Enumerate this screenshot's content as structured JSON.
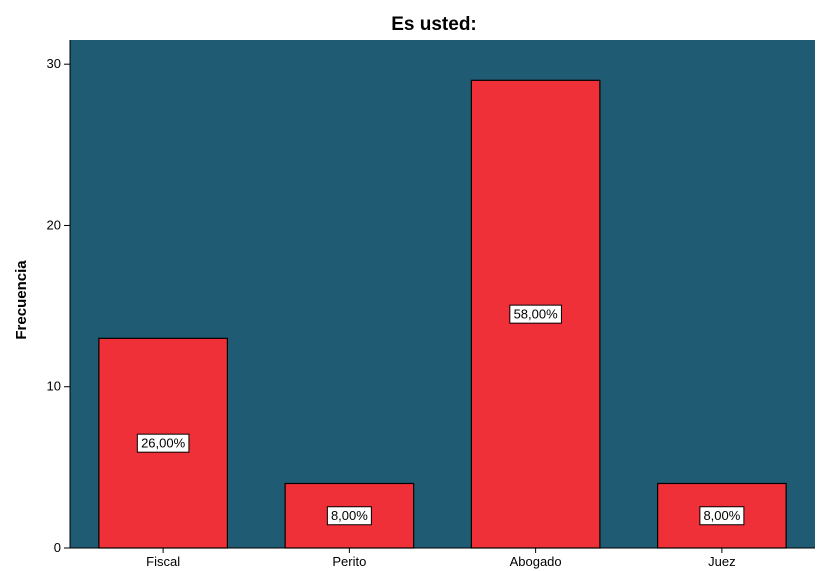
{
  "chart_data": {
    "type": "bar",
    "title": "Es usted:",
    "xlabel": "",
    "ylabel": "Frecuencia",
    "categories": [
      "Fiscal",
      "Perito",
      "Abogado",
      "Juez"
    ],
    "values": [
      13,
      4,
      29,
      4
    ],
    "data_labels": [
      "26,00%",
      "8,00%",
      "58,00%",
      "8,00%"
    ],
    "ylim": [
      0,
      31.5
    ],
    "yticks": [
      0,
      10,
      20,
      30
    ],
    "grid": false,
    "legend": "none",
    "colors": {
      "plot_background": "#1f5c74",
      "bar_fill": "#f03038",
      "bar_stroke": "#000000",
      "label_box": "#ffffff"
    }
  }
}
